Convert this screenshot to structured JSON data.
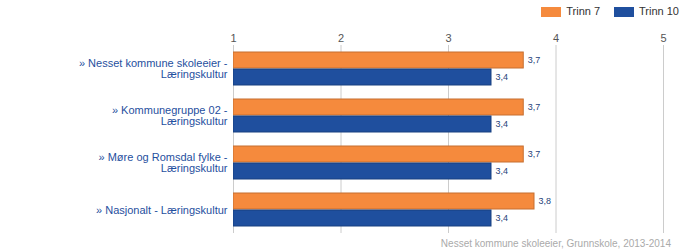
{
  "chart_data": {
    "type": "bar",
    "orientation": "horizontal",
    "caption": "Nesset kommune skoleeier, Grunnskole, 2013-2014",
    "categories": [
      "» Nesset kommune skoleeier - Læringskultur",
      "» Kommunegruppe 02 - Læringskultur",
      "» Møre og Romsdal fylke - Læringskultur",
      "» Nasjonalt - Læringskultur"
    ],
    "series": [
      {
        "name": "Trinn 7",
        "color": "#f58a3d",
        "values": [
          3.7,
          3.7,
          3.7,
          3.8
        ],
        "value_labels": [
          "3,7",
          "3,7",
          "3,7",
          "3,8"
        ]
      },
      {
        "name": "Trinn 10",
        "color": "#1f4f9e",
        "values": [
          3.4,
          3.4,
          3.4,
          3.4
        ],
        "value_labels": [
          "3,4",
          "3,4",
          "3,4",
          "3,4"
        ]
      }
    ],
    "xlim": [
      1,
      5
    ],
    "xticks": [
      1,
      2,
      3,
      4,
      5
    ],
    "grid": true,
    "legend": "top-right",
    "data_labels": true
  }
}
